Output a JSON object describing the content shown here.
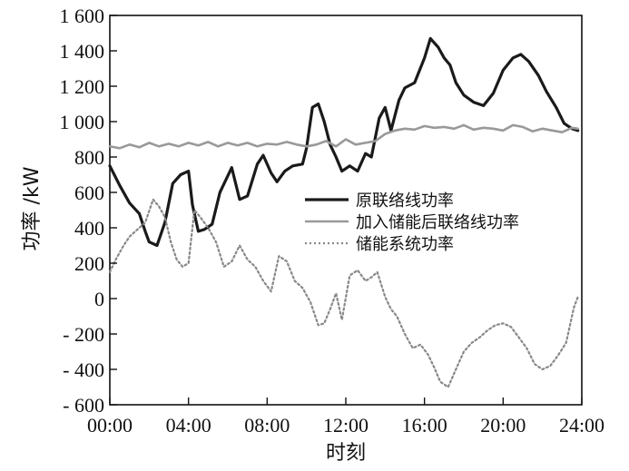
{
  "chart_data": {
    "type": "line",
    "xlabel": "时刻",
    "ylabel": "功率 /kW",
    "xlim": [
      0,
      24
    ],
    "ylim": [
      -600,
      1600
    ],
    "xticks": [
      {
        "value": 0,
        "label": "00:00"
      },
      {
        "value": 4,
        "label": "04:00"
      },
      {
        "value": 8,
        "label": "08:00"
      },
      {
        "value": 12,
        "label": "12:00"
      },
      {
        "value": 16,
        "label": "16:00"
      },
      {
        "value": 20,
        "label": "20:00"
      },
      {
        "value": 24,
        "label": "24:00"
      }
    ],
    "yticks": [
      {
        "value": 1600,
        "label": "1 600"
      },
      {
        "value": 1400,
        "label": "1 400"
      },
      {
        "value": 1200,
        "label": "1 200"
      },
      {
        "value": 1000,
        "label": "1 000"
      },
      {
        "value": 800,
        "label": "800"
      },
      {
        "value": 600,
        "label": "600"
      },
      {
        "value": 400,
        "label": "400"
      },
      {
        "value": 200,
        "label": "200"
      },
      {
        "value": 0,
        "label": "0"
      },
      {
        "value": -200,
        "label": "- 200"
      },
      {
        "value": -400,
        "label": "- 400"
      },
      {
        "value": -600,
        "label": "- 600"
      }
    ],
    "grid": false,
    "legend_position": "center-right",
    "series": [
      {
        "name": "原联络线功率",
        "color": "#1a1a1a",
        "style": "solid",
        "x": [
          0,
          0.5,
          1,
          1.5,
          1.8,
          2,
          2.4,
          2.8,
          3.2,
          3.6,
          4,
          4.2,
          4.5,
          4.8,
          5.2,
          5.6,
          6.2,
          6.6,
          7,
          7.5,
          7.8,
          8.2,
          8.5,
          8.9,
          9.3,
          9.8,
          10,
          10.3,
          10.6,
          10.9,
          11.2,
          11.5,
          11.8,
          12.2,
          12.6,
          13,
          13.3,
          13.7,
          14,
          14.3,
          14.7,
          15,
          15.5,
          16,
          16.3,
          16.7,
          17,
          17.3,
          17.6,
          18,
          18.5,
          19,
          19.5,
          20,
          20.5,
          20.9,
          21.3,
          21.8,
          22.2,
          22.7,
          23.1,
          23.5,
          23.8
        ],
        "y": [
          750,
          640,
          540,
          480,
          380,
          320,
          300,
          430,
          650,
          700,
          720,
          530,
          380,
          390,
          420,
          600,
          740,
          560,
          580,
          760,
          810,
          710,
          660,
          720,
          750,
          760,
          850,
          1080,
          1100,
          1000,
          870,
          800,
          720,
          750,
          720,
          820,
          800,
          1020,
          1080,
          950,
          1120,
          1190,
          1220,
          1360,
          1470,
          1420,
          1360,
          1320,
          1220,
          1150,
          1110,
          1090,
          1160,
          1290,
          1360,
          1380,
          1340,
          1260,
          1170,
          1080,
          990,
          960,
          950
        ]
      },
      {
        "name": "加入储能后联络线功率",
        "color": "#999999",
        "style": "solid",
        "x": [
          0,
          0.5,
          1,
          1.5,
          2,
          2.5,
          3,
          3.5,
          4,
          4.5,
          5,
          5.5,
          6,
          6.5,
          7,
          7.5,
          8,
          8.5,
          9,
          9.5,
          10,
          10.5,
          11,
          11.5,
          12,
          12.5,
          13,
          13.5,
          14,
          14.5,
          15,
          15.5,
          16,
          16.5,
          17,
          17.5,
          18,
          18.5,
          19,
          19.5,
          20,
          20.5,
          21,
          21.5,
          22,
          22.5,
          23,
          23.5,
          23.8
        ],
        "y": [
          860,
          850,
          870,
          855,
          880,
          860,
          875,
          860,
          880,
          865,
          885,
          860,
          880,
          865,
          880,
          860,
          875,
          870,
          885,
          870,
          860,
          870,
          890,
          860,
          900,
          870,
          880,
          890,
          930,
          950,
          960,
          955,
          975,
          965,
          970,
          960,
          980,
          955,
          965,
          960,
          950,
          980,
          970,
          945,
          960,
          950,
          940,
          965,
          960
        ]
      },
      {
        "name": "储能系统功率",
        "color": "#888888",
        "style": "dotted",
        "x": [
          0,
          0.3,
          0.7,
          1,
          1.4,
          1.8,
          2.2,
          2.5,
          2.8,
          3.1,
          3.4,
          3.7,
          4,
          4.3,
          4.6,
          5,
          5.4,
          5.8,
          6.2,
          6.6,
          7,
          7.4,
          7.8,
          8.2,
          8.6,
          9,
          9.4,
          9.8,
          10.2,
          10.6,
          10.9,
          11.2,
          11.5,
          11.8,
          12.2,
          12.6,
          13,
          13.3,
          13.6,
          14,
          14.3,
          14.6,
          15,
          15.4,
          15.8,
          16.2,
          16.5,
          16.8,
          17.2,
          17.6,
          18,
          18.4,
          18.8,
          19.2,
          19.6,
          20,
          20.4,
          20.8,
          21.2,
          21.6,
          22,
          22.4,
          22.8,
          23.2,
          23.6,
          23.8
        ],
        "y": [
          150,
          220,
          300,
          350,
          390,
          430,
          560,
          520,
          460,
          320,
          220,
          180,
          200,
          500,
          460,
          400,
          320,
          180,
          210,
          300,
          220,
          180,
          100,
          40,
          240,
          210,
          100,
          60,
          -20,
          -150,
          -140,
          -60,
          30,
          -120,
          130,
          160,
          100,
          120,
          150,
          10,
          -60,
          -100,
          -200,
          -280,
          -260,
          -320,
          -390,
          -470,
          -500,
          -400,
          -300,
          -250,
          -220,
          -180,
          -150,
          -140,
          -160,
          -220,
          -280,
          -370,
          -400,
          -380,
          -320,
          -250,
          -50,
          10
        ]
      }
    ]
  }
}
